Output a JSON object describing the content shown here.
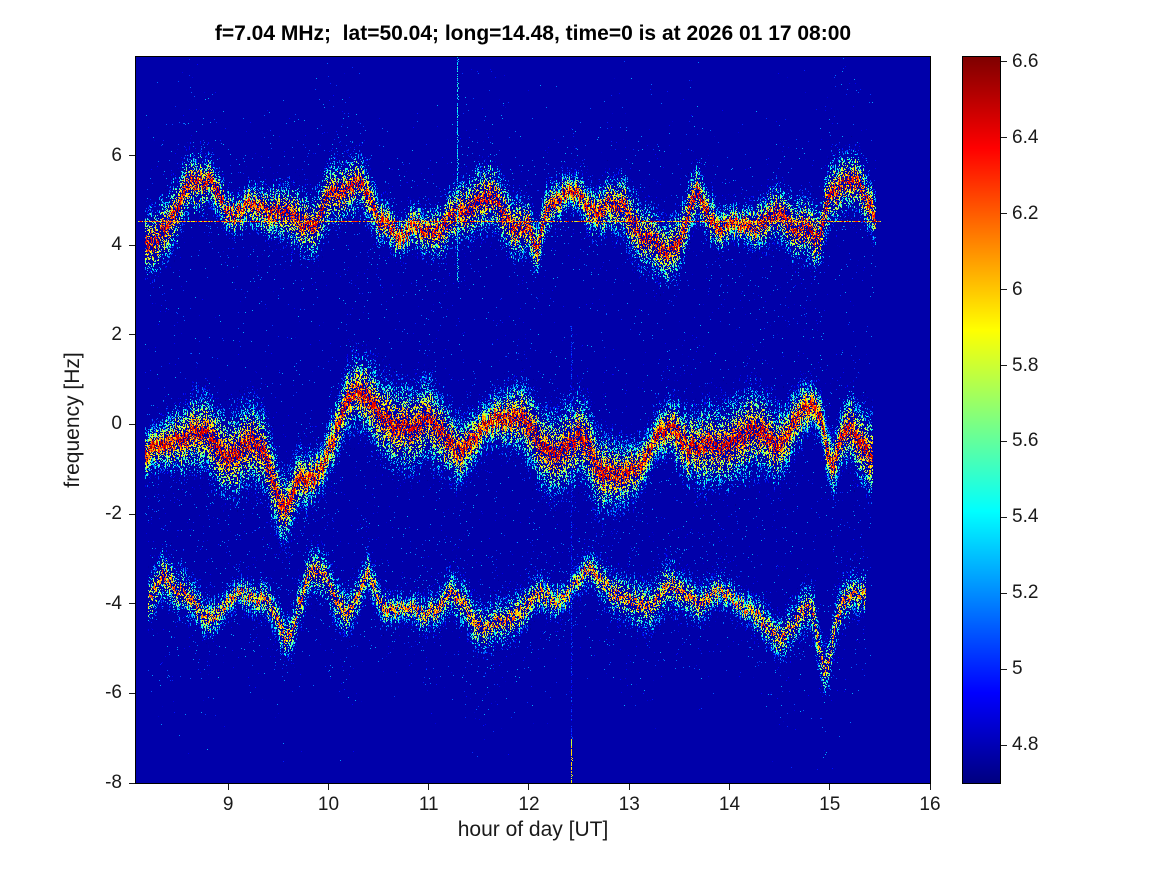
{
  "title": "f=7.04 MHz;  lat=50.04; long=14.48, time=0 is at 2026 01 17 08:00",
  "chart_data": {
    "type": "heatmap",
    "title": "f=7.04 MHz;  lat=50.04; long=14.48, time=0 is at 2026 01 17 08:00",
    "xlabel": "hour of day [UT]",
    "ylabel": "frequency [Hz]",
    "xlim": [
      8.08,
      16
    ],
    "ylim": [
      -8,
      8.2
    ],
    "x_ticks": [
      "9",
      "10",
      "11",
      "12",
      "13",
      "14",
      "15",
      "16"
    ],
    "y_ticks": [
      "6",
      "4",
      "2",
      "0",
      "-2",
      "-4",
      "-6",
      "-8"
    ],
    "colorbar": {
      "ticks": [
        "6.6",
        "6.4",
        "6.2",
        "6",
        "5.8",
        "5.6",
        "5.4",
        "5.2",
        "5",
        "4.8"
      ],
      "range": [
        4.7,
        6.613
      ],
      "colormap": "jet"
    },
    "background_value": 4.78,
    "bands": [
      {
        "name": "upper-doppler-trace",
        "center_freq_hz": 4.62,
        "sigma_hz": 0.38,
        "peak_value": 6.55,
        "time_start": 8.17,
        "time_end": 15.45,
        "jitter": 0.3,
        "density": 26,
        "core_prob": 0.9,
        "core_thickness": 2,
        "seed": 11,
        "components": [
          [
            0.35,
            2.1,
            1.2
          ],
          [
            0.28,
            4.9,
            2.6
          ],
          [
            0.22,
            8.8,
            0.4
          ],
          [
            0.12,
            15.5,
            3.3
          ]
        ],
        "bumps": [
          [
            10.33,
            1.0,
            0.18
          ],
          [
            10.6,
            0.55,
            0.1
          ],
          [
            8.6,
            0.4,
            0.08
          ],
          [
            13.65,
            0.45,
            0.1
          ],
          [
            12.08,
            -0.9,
            0.07
          ],
          [
            14.88,
            -0.8,
            0.08
          ]
        ]
      },
      {
        "name": "middle-doppler-trace",
        "center_freq_hz": -0.38,
        "sigma_hz": 0.5,
        "peak_value": 6.58,
        "time_start": 8.17,
        "time_end": 15.42,
        "jitter": 0.3,
        "density": 38,
        "core_prob": 0.95,
        "core_thickness": 3,
        "seed": 22,
        "components": [
          [
            0.4,
            1.8,
            0.3
          ],
          [
            0.3,
            4.2,
            1.7
          ],
          [
            0.22,
            7.9,
            3.0
          ],
          [
            0.12,
            13.7,
            0.9
          ]
        ],
        "bumps": [
          [
            10.32,
            0.9,
            0.2
          ],
          [
            9.55,
            -0.8,
            0.12
          ],
          [
            15.02,
            -1.2,
            0.1
          ],
          [
            12.55,
            0.4,
            0.12
          ]
        ]
      },
      {
        "name": "lower-doppler-trace",
        "center_freq_hz": -3.95,
        "sigma_hz": 0.33,
        "peak_value": 6.32,
        "time_start": 8.2,
        "time_end": 15.35,
        "jitter": 0.25,
        "density": 20,
        "core_prob": 0.75,
        "core_thickness": 2,
        "seed": 33,
        "components": [
          [
            0.3,
            1.9,
            2.2
          ],
          [
            0.25,
            4.6,
            0.8
          ],
          [
            0.18,
            8.9,
            1.9
          ],
          [
            0.1,
            14.3,
            4.1
          ]
        ],
        "bumps": [
          [
            9.58,
            -1.2,
            0.14
          ],
          [
            10.38,
            0.7,
            0.12
          ],
          [
            14.95,
            -1.3,
            0.09
          ],
          [
            8.35,
            0.5,
            0.1
          ]
        ]
      }
    ],
    "hline": {
      "freq_hz": 4.55,
      "time_start": 8.1,
      "time_end": 15.5,
      "value_min": 5.7,
      "value_max": 6.6
    },
    "vlines": [
      {
        "time": 11.28,
        "f_top": 8.2,
        "f_bottom": 3.2,
        "value": 5.35
      },
      {
        "time": 12.42,
        "f_top": 2.2,
        "f_bottom": -8.0,
        "value": 4.95,
        "bottom_from": -7.0,
        "bottom_value": 5.9
      }
    ]
  }
}
